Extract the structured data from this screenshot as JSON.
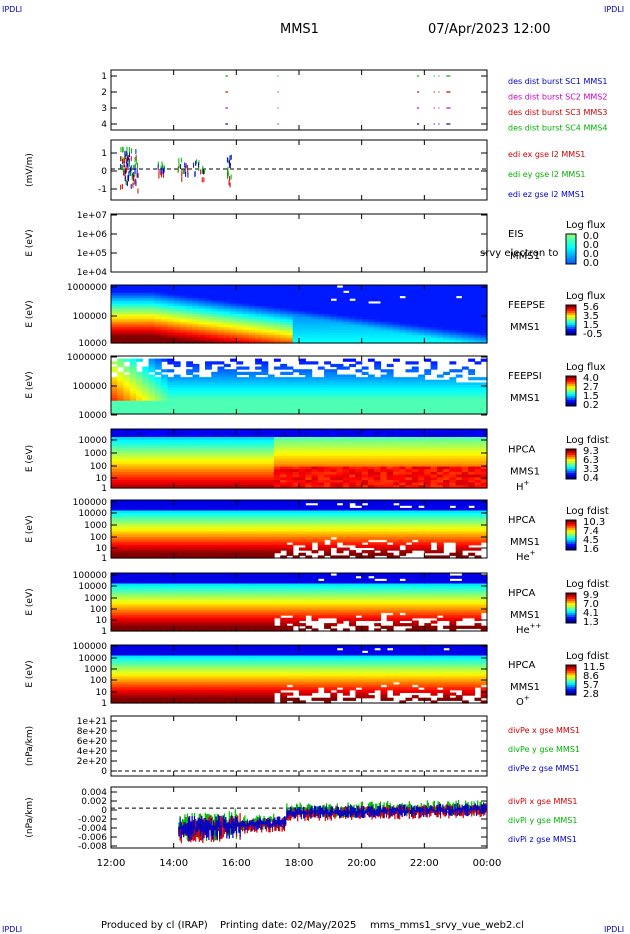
{
  "header": {
    "corner_label": "IPDLI",
    "title": "MMS1",
    "datetime": "07/Apr/2023 12:00"
  },
  "footer": {
    "produced_by": "Produced by cl (IRAP)",
    "printing_date": "Printing date: 02/May/2025",
    "script_name": "mms_mms1_srvy_vue_web2.cl"
  },
  "chart_data": [
    {
      "type": "line",
      "title": "Burst availability",
      "ylabel": "",
      "yticks": [
        "1",
        "2",
        "3",
        "4"
      ],
      "series": [
        {
          "name": "des dist burst SC1 MMS1",
          "color": "#0000c8",
          "intervals": [
            [
              "15:39",
              "15:44"
            ],
            [
              "17:19",
              "17:20"
            ],
            [
              "21:46",
              "21:50"
            ],
            [
              "22:18",
              "22:19"
            ],
            [
              "22:27",
              "22:28"
            ],
            [
              "22:42",
              "22:50"
            ]
          ]
        },
        {
          "name": "des dist burst SC2 MMS2",
          "color": "#c800c8",
          "intervals": [
            [
              "15:39",
              "15:44"
            ],
            [
              "17:19",
              "17:20"
            ],
            [
              "21:46",
              "21:50"
            ],
            [
              "22:18",
              "22:19"
            ],
            [
              "22:27",
              "22:28"
            ],
            [
              "22:42",
              "22:50"
            ]
          ]
        },
        {
          "name": "des dist burst SC3 MMS3",
          "color": "#d00000",
          "intervals": [
            [
              "15:39",
              "15:44"
            ],
            [
              "17:19",
              "17:20"
            ],
            [
              "21:46",
              "21:50"
            ],
            [
              "22:18",
              "22:19"
            ],
            [
              "22:27",
              "22:28"
            ],
            [
              "22:42",
              "22:50"
            ]
          ]
        },
        {
          "name": "des dist burst SC4 MMS4",
          "color": "#00b400",
          "intervals": [
            [
              "15:39",
              "15:44"
            ],
            [
              "17:19",
              "17:20"
            ],
            [
              "21:46",
              "21:50"
            ],
            [
              "22:18",
              "22:19"
            ],
            [
              "22:27",
              "22:28"
            ],
            [
              "22:42",
              "22:50"
            ]
          ]
        }
      ]
    },
    {
      "type": "scatter",
      "ylabel": "(mV/m)",
      "yticks": [
        "1",
        "0",
        "-1"
      ],
      "ylim": [
        -1.6,
        1.5
      ],
      "series": [
        {
          "name": "edi ex gse l2 MMS1",
          "color": "#d00000"
        },
        {
          "name": "edi ey gse l2 MMS1",
          "color": "#00b400"
        },
        {
          "name": "edi ez gse l2 MMS1",
          "color": "#0000c8"
        }
      ]
    },
    {
      "type": "heatmap",
      "ylabel": "E (eV)",
      "yticks": [
        "1e+07",
        "1e+06",
        "1e+05",
        "1e+04"
      ],
      "label_lines": [
        "EIS",
        "MMS1"
      ],
      "overlay_text": "srvy electron to",
      "colorbar": {
        "title": "Log flux",
        "ticks": [
          "0.0",
          "0.0",
          "0.0",
          "0.0"
        ]
      }
    },
    {
      "type": "heatmap",
      "ylabel": "E (eV)",
      "yticks": [
        "1000000",
        "100000",
        "10000"
      ],
      "label_lines": [
        "FEEPSE",
        "MMS1"
      ],
      "colorbar": {
        "title": "Log flux",
        "ticks": [
          "5.6",
          "3.5",
          "1.5",
          "-0.5"
        ]
      }
    },
    {
      "type": "heatmap",
      "ylabel": "E (eV)",
      "yticks": [
        "1000000",
        "100000",
        "10000"
      ],
      "label_lines": [
        "FEEPSI",
        "MMS1"
      ],
      "colorbar": {
        "title": "Log flux",
        "ticks": [
          "4.0",
          "2.7",
          "1.5",
          "0.2"
        ]
      }
    },
    {
      "type": "heatmap",
      "ylabel": "E (eV)",
      "yticks": [
        "10000",
        "1000",
        "100",
        "10",
        "1"
      ],
      "label_lines": [
        "HPCA",
        "MMS1"
      ],
      "species": "H",
      "species_sup": "+",
      "colorbar": {
        "title": "Log fdist",
        "ticks": [
          "9.3",
          "6.3",
          "3.3",
          "0.4"
        ]
      }
    },
    {
      "type": "heatmap",
      "ylabel": "E (eV)",
      "yticks": [
        "100000",
        "10000",
        "1000",
        "100",
        "10",
        "1"
      ],
      "label_lines": [
        "HPCA",
        "MMS1"
      ],
      "species": "He",
      "species_sup": "+",
      "colorbar": {
        "title": "Log fdist",
        "ticks": [
          "10.3",
          "7.4",
          "4.5",
          "1.6"
        ]
      }
    },
    {
      "type": "heatmap",
      "ylabel": "E (eV)",
      "yticks": [
        "100000",
        "10000",
        "1000",
        "100",
        "10",
        "1"
      ],
      "label_lines": [
        "HPCA",
        "MMS1"
      ],
      "species": "He",
      "species_sup": "++",
      "colorbar": {
        "title": "Log fdist",
        "ticks": [
          "9.9",
          "7.0",
          "4.1",
          "1.3"
        ]
      }
    },
    {
      "type": "heatmap",
      "ylabel": "E (eV)",
      "yticks": [
        "100000",
        "10000",
        "1000",
        "100",
        "10",
        "1"
      ],
      "label_lines": [
        "HPCA",
        "MMS1"
      ],
      "species": "O",
      "species_sup": "+",
      "colorbar": {
        "title": "Log fdist",
        "ticks": [
          "11.5",
          "8.6",
          "5.7",
          "2.8"
        ]
      }
    },
    {
      "type": "line",
      "ylabel": "(nPa/km)",
      "yticks": [
        "1e+21",
        "8e+20",
        "6e+20",
        "4e+20",
        "2e+20",
        "0"
      ],
      "ylim": [
        -5e+19,
        1.05e+21
      ],
      "series": [
        {
          "name": "divPe x gse MMS1",
          "color": "#d00000"
        },
        {
          "name": "divPe y gse MMS1",
          "color": "#00b400"
        },
        {
          "name": "divPe z gse MMS1",
          "color": "#0000c8"
        }
      ]
    },
    {
      "type": "line",
      "ylabel": "(nPa/km)",
      "yticks": [
        "0.004",
        "0.002",
        "0",
        "-0.002",
        "-0.004",
        "-0.006",
        "-0.008"
      ],
      "ylim": [
        -0.0085,
        0.0045
      ],
      "series": [
        {
          "name": "divPi x gse MMS1",
          "color": "#d00000"
        },
        {
          "name": "divPi y gse MMS1",
          "color": "#00b400"
        },
        {
          "name": "divPi z gse MMS1",
          "color": "#0000c8"
        }
      ]
    }
  ],
  "xaxis": {
    "ticks": [
      "12:00",
      "14:00",
      "16:00",
      "18:00",
      "20:00",
      "22:00",
      "00:00"
    ]
  }
}
